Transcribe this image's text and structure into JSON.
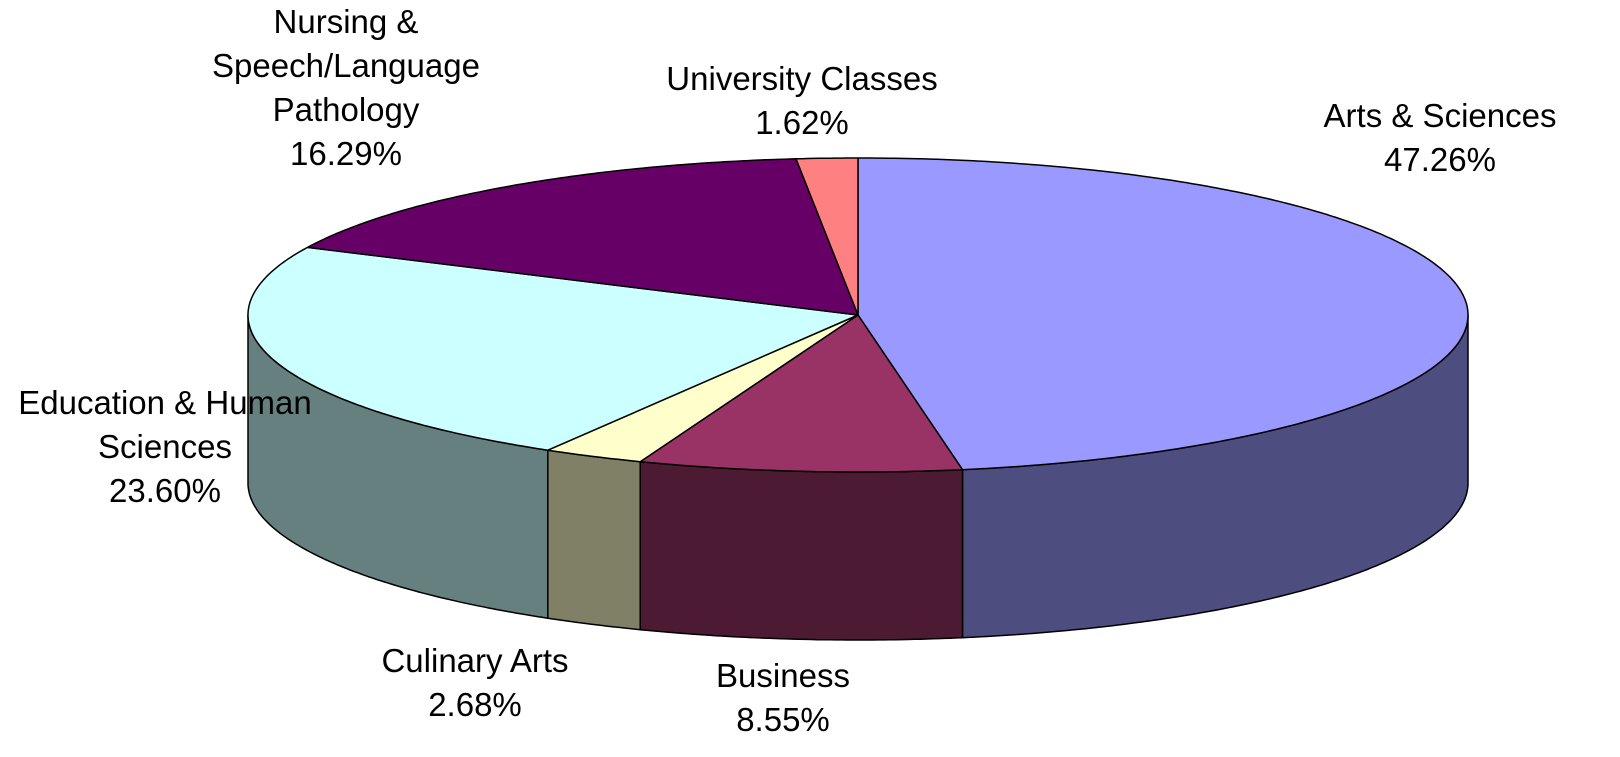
{
  "chart_data": {
    "type": "pie",
    "categories": [
      "Arts & Sciences",
      "Business",
      "Culinary Arts",
      "Education & Human Sciences",
      "Nursing & Speech/Language Pathology",
      "University Classes"
    ],
    "values": [
      47.26,
      8.55,
      2.68,
      23.6,
      16.29,
      1.62
    ],
    "value_labels": [
      "47.26%",
      "8.55%",
      "2.68%",
      "23.60%",
      "16.29%",
      "1.62%"
    ],
    "colors": [
      "#9999ff",
      "#993366",
      "#ffffcc",
      "#ccffff",
      "#660066",
      "#ff8080"
    ]
  }
}
